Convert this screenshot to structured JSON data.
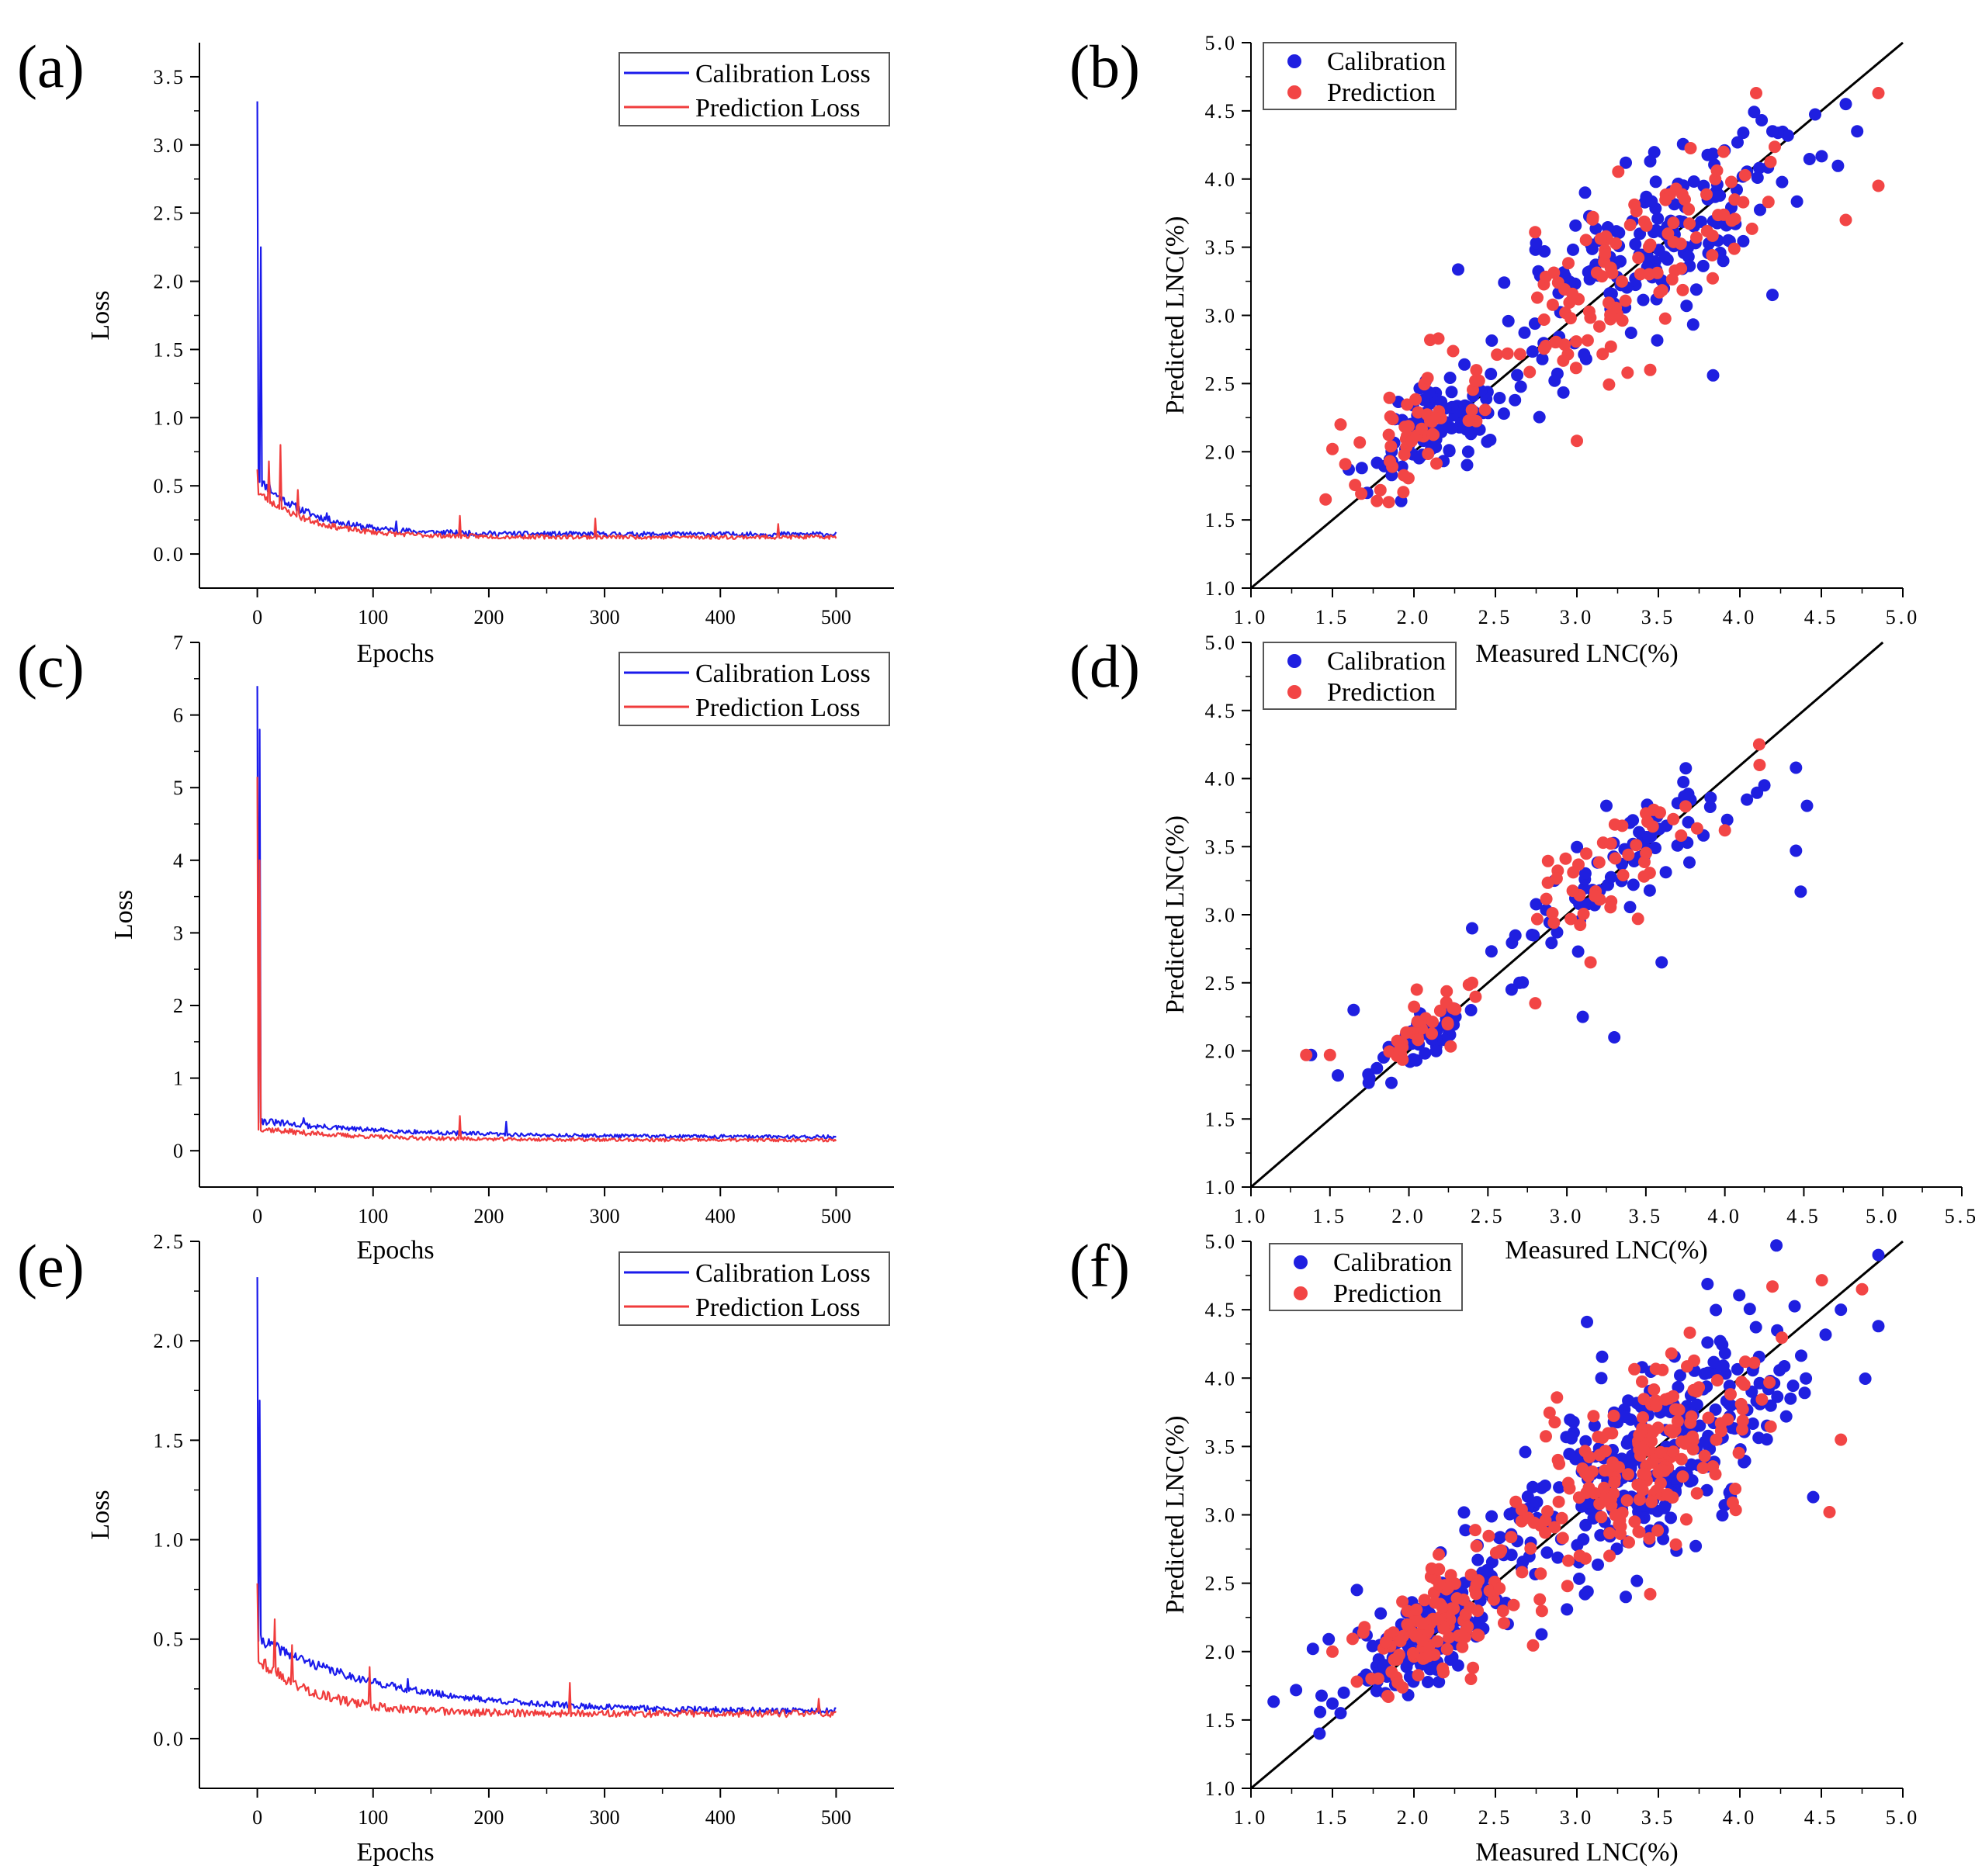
{
  "figure": {
    "loss_color_calibration": "#1a1aeb",
    "loss_color_prediction": "#f03c3c",
    "scatter_color_calibration": "#1f1fe0",
    "scatter_color_prediction": "#f24545",
    "line_color": "#000000"
  },
  "chart_data": [
    {
      "id": "a",
      "type": "line",
      "panel_label": "(a)",
      "xlabel": "Epochs",
      "ylabel": "Loss",
      "xlim": [
        -50,
        550
      ],
      "ylim": [
        -0.25,
        3.75
      ],
      "xticks": [
        0,
        100,
        200,
        300,
        400,
        500
      ],
      "xtick_labels": [
        "0",
        "100",
        "200",
        "300",
        "400",
        "500"
      ],
      "yticks": [
        0,
        0.5,
        1,
        1.5,
        2,
        2.5,
        3,
        3.5
      ],
      "ytick_labels": [
        "0.0",
        "0.5",
        "1.0",
        "1.5",
        "2.0",
        "2.5",
        "3.0",
        "3.5"
      ],
      "legend": [
        "Calibration Loss",
        "Prediction Loss"
      ],
      "series": [
        {
          "name": "Calibration Loss",
          "color_key": "loss_color_calibration",
          "curve": {
            "start": 3.32,
            "drop_to": 0.55,
            "plateau": 0.14,
            "decay": 45,
            "noise": 0.035,
            "seed": 11
          },
          "spikes": [
            [
              3,
              2.25
            ],
            [
              10,
              0.55
            ],
            [
              60,
              0.3
            ],
            [
              120,
              0.24
            ]
          ]
        },
        {
          "name": "Prediction Loss",
          "color_key": "loss_color_prediction",
          "curve": {
            "start": 0.62,
            "drop_to": 0.45,
            "plateau": 0.12,
            "decay": 45,
            "noise": 0.03,
            "seed": 23
          },
          "spikes": [
            [
              10,
              0.68
            ],
            [
              20,
              0.8
            ],
            [
              35,
              0.47
            ],
            [
              175,
              0.28
            ],
            [
              292,
              0.26
            ],
            [
              450,
              0.22
            ]
          ]
        }
      ]
    },
    {
      "id": "c",
      "type": "line",
      "panel_label": "(c)",
      "xlabel": "Epochs",
      "ylabel": "Loss",
      "xlim": [
        -50,
        550
      ],
      "ylim": [
        -0.5,
        7
      ],
      "xticks": [
        0,
        100,
        200,
        300,
        400,
        500
      ],
      "xtick_labels": [
        "0",
        "100",
        "200",
        "300",
        "400",
        "500"
      ],
      "yticks": [
        0,
        1,
        2,
        3,
        4,
        5,
        6,
        7
      ],
      "ytick_labels": [
        "0",
        "1",
        "2",
        "3",
        "4",
        "5",
        "6",
        "7"
      ],
      "legend": [
        "Calibration Loss",
        "Prediction Loss"
      ],
      "series": [
        {
          "name": "Calibration Loss",
          "color_key": "loss_color_calibration",
          "curve": {
            "start": 6.4,
            "drop_to": 0.4,
            "plateau": 0.18,
            "decay": 120,
            "noise": 0.05,
            "seed": 31
          },
          "spikes": [
            [
              2,
              5.8
            ],
            [
              40,
              0.45
            ],
            [
              215,
              0.4
            ]
          ]
        },
        {
          "name": "Prediction Loss",
          "color_key": "loss_color_prediction",
          "curve": {
            "start": 5.15,
            "drop_to": 0.3,
            "plateau": 0.14,
            "decay": 80,
            "noise": 0.045,
            "seed": 37
          },
          "spikes": [
            [
              2,
              4.0
            ],
            [
              175,
              0.48
            ]
          ]
        }
      ]
    },
    {
      "id": "e",
      "type": "line",
      "panel_label": "(e)",
      "xlabel": "Epochs",
      "ylabel": "Loss",
      "xlim": [
        -50,
        550
      ],
      "ylim": [
        -0.25,
        2.5
      ],
      "xticks": [
        0,
        100,
        200,
        300,
        400,
        500
      ],
      "xtick_labels": [
        "0",
        "100",
        "200",
        "300",
        "400",
        "500"
      ],
      "yticks": [
        0,
        0.5,
        1,
        1.5,
        2,
        2.5
      ],
      "ytick_labels": [
        "0.0",
        "0.5",
        "1.0",
        "1.5",
        "2.0",
        "2.5"
      ],
      "legend": [
        "Calibration Loss",
        "Prediction Loss"
      ],
      "series": [
        {
          "name": "Calibration Loss",
          "color_key": "loss_color_calibration",
          "curve": {
            "start": 2.32,
            "drop_to": 0.5,
            "plateau": 0.13,
            "decay": 110,
            "noise": 0.03,
            "seed": 41
          },
          "spikes": [
            [
              2,
              1.7
            ],
            [
              130,
              0.3
            ]
          ]
        },
        {
          "name": "Prediction Loss",
          "color_key": "loss_color_prediction",
          "curve": {
            "start": 0.78,
            "drop_to": 0.4,
            "plateau": 0.12,
            "decay": 50,
            "noise": 0.035,
            "seed": 43
          },
          "spikes": [
            [
              15,
              0.6
            ],
            [
              30,
              0.47
            ],
            [
              97,
              0.36
            ],
            [
              270,
              0.28
            ],
            [
              485,
              0.2
            ]
          ]
        }
      ]
    },
    {
      "id": "b",
      "type": "scatter",
      "panel_label": "(b)",
      "xlabel": "Measured LNC(%)",
      "ylabel": "Predicted LNC(%)",
      "xlim": [
        1.0,
        5.0
      ],
      "ylim": [
        1.0,
        5.0
      ],
      "xticks": [
        1.0,
        1.5,
        2.0,
        2.5,
        3.0,
        3.5,
        4.0,
        4.5,
        5.0
      ],
      "xtick_labels": [
        "1.0",
        "1.5",
        "2.0",
        "2.5",
        "3.0",
        "3.5",
        "4.0",
        "4.5",
        "5.0"
      ],
      "yticks": [
        1.0,
        1.5,
        2.0,
        2.5,
        3.0,
        3.5,
        4.0,
        4.5,
        5.0
      ],
      "ytick_labels": [
        "1.0",
        "1.5",
        "2.0",
        "2.5",
        "3.0",
        "3.5",
        "4.0",
        "4.5",
        "5.0"
      ],
      "legend": [
        "Calibration",
        "Prediction"
      ],
      "reference_line": [
        [
          1.0,
          1.0
        ],
        [
          5.0,
          5.0
        ]
      ],
      "series": [
        {
          "name": "Calibration",
          "color_key": "scatter_color_calibration",
          "clusters": [
            {
              "n": 90,
              "cx": 2.15,
              "cy": 2.2,
              "sx": 0.2,
              "sy": 0.18,
              "seed": 101
            },
            {
              "n": 170,
              "cx": 3.45,
              "cy": 3.45,
              "sx": 0.42,
              "sy": 0.32,
              "seed": 102
            }
          ],
          "points": [
            [
              1.6,
              1.87
            ],
            [
              1.68,
              1.88
            ],
            [
              4.65,
              4.55
            ],
            [
              4.72,
              4.35
            ],
            [
              4.2,
              4.35
            ],
            [
              3.3,
              4.12
            ],
            [
              3.45,
              4.13
            ],
            [
              3.05,
              3.9
            ],
            [
              4.2,
              3.15
            ],
            [
              2.75,
              3.53
            ]
          ]
        },
        {
          "name": "Prediction",
          "color_key": "scatter_color_prediction",
          "clusters": [
            {
              "n": 55,
              "cx": 2.05,
              "cy": 2.2,
              "sx": 0.22,
              "sy": 0.2,
              "seed": 103
            },
            {
              "n": 110,
              "cx": 3.35,
              "cy": 3.4,
              "sx": 0.4,
              "sy": 0.3,
              "seed": 104
            }
          ],
          "points": [
            [
              1.5,
              2.02
            ],
            [
              1.55,
              2.2
            ],
            [
              2.15,
              2.83
            ],
            [
              2.1,
              2.82
            ],
            [
              3.0,
              2.08
            ],
            [
              3.45,
              2.6
            ],
            [
              4.1,
              4.63
            ],
            [
              4.85,
              4.63
            ],
            [
              4.85,
              3.95
            ],
            [
              4.65,
              3.7
            ],
            [
              3.9,
              4.2
            ]
          ]
        }
      ]
    },
    {
      "id": "d",
      "type": "scatter",
      "panel_label": "(d)",
      "xlabel": "Measured LNC(%)",
      "ylabel": "Predicted LNC(%)",
      "xlim": [
        1.0,
        5.5
      ],
      "ylim": [
        1.0,
        5.0
      ],
      "xticks": [
        1.0,
        1.5,
        2.0,
        2.5,
        3.0,
        3.5,
        4.0,
        4.5,
        5.0,
        5.5
      ],
      "xtick_labels": [
        "1.0",
        "1.5",
        "2.0",
        "2.5",
        "3.0",
        "3.5",
        "4.0",
        "4.5",
        "5.0",
        "5.5"
      ],
      "yticks": [
        1.0,
        1.5,
        2.0,
        2.5,
        3.0,
        3.5,
        4.0,
        4.5,
        5.0
      ],
      "ytick_labels": [
        "1.0",
        "1.5",
        "2.0",
        "2.5",
        "3.0",
        "3.5",
        "4.0",
        "4.5",
        "5.0"
      ],
      "legend": [
        "Calibration",
        "Prediction"
      ],
      "reference_line": [
        [
          1.0,
          1.0
        ],
        [
          5.0,
          5.0
        ]
      ],
      "series": [
        {
          "name": "Calibration",
          "color_key": "scatter_color_calibration",
          "clusters": [
            {
              "n": 45,
              "cx": 2.1,
              "cy": 2.1,
              "sx": 0.15,
              "sy": 0.1,
              "seed": 201
            },
            {
              "n": 70,
              "cx": 3.35,
              "cy": 3.35,
              "sx": 0.35,
              "sy": 0.18,
              "seed": 202
            }
          ],
          "points": [
            [
              1.38,
              1.97
            ],
            [
              1.55,
              1.82
            ],
            [
              1.65,
              2.3
            ],
            [
              1.75,
              1.8
            ],
            [
              2.4,
              2.9
            ],
            [
              2.65,
              2.45
            ],
            [
              2.7,
              2.5
            ],
            [
              3.1,
              2.25
            ],
            [
              3.3,
              2.1
            ],
            [
              3.6,
              2.65
            ],
            [
              4.45,
              4.08
            ],
            [
              4.52,
              3.8
            ],
            [
              4.48,
              3.17
            ],
            [
              4.45,
              3.47
            ],
            [
              4.25,
              3.95
            ],
            [
              3.25,
              3.8
            ]
          ]
        },
        {
          "name": "Prediction",
          "color_key": "scatter_color_prediction",
          "clusters": [
            {
              "n": 30,
              "cx": 2.05,
              "cy": 2.1,
              "sx": 0.17,
              "sy": 0.1,
              "seed": 203
            },
            {
              "n": 45,
              "cx": 3.2,
              "cy": 3.3,
              "sx": 0.35,
              "sy": 0.15,
              "seed": 204
            }
          ],
          "points": [
            [
              1.35,
              1.97
            ],
            [
              1.5,
              1.97
            ],
            [
              2.05,
              2.45
            ],
            [
              2.4,
              2.5
            ],
            [
              2.8,
              2.35
            ],
            [
              3.15,
              2.65
            ],
            [
              3.45,
              2.97
            ],
            [
              4.22,
              4.1
            ],
            [
              4.0,
              3.62
            ],
            [
              3.55,
              3.77
            ]
          ]
        }
      ]
    },
    {
      "id": "f",
      "type": "scatter",
      "panel_label": "(f)",
      "xlabel": "Measured LNC(%)",
      "ylabel": "Predicted LNC(%)",
      "xlim": [
        1.0,
        5.0
      ],
      "ylim": [
        1.0,
        5.0
      ],
      "xticks": [
        1.0,
        1.5,
        2.0,
        2.5,
        3.0,
        3.5,
        4.0,
        4.5,
        5.0
      ],
      "xtick_labels": [
        "1.0",
        "1.5",
        "2.0",
        "2.5",
        "3.0",
        "3.5",
        "4.0",
        "4.5",
        "5.0"
      ],
      "yticks": [
        1.0,
        1.5,
        2.0,
        2.5,
        3.0,
        3.5,
        4.0,
        4.5,
        5.0
      ],
      "ytick_labels": [
        "1.0",
        "1.5",
        "2.0",
        "2.5",
        "3.0",
        "3.5",
        "4.0",
        "4.5",
        "5.0"
      ],
      "legend": [
        "Calibration",
        "Prediction"
      ],
      "reference_line": [
        [
          1.0,
          1.0
        ],
        [
          5.0,
          5.0
        ]
      ],
      "series": [
        {
          "name": "Calibration",
          "color_key": "scatter_color_calibration",
          "clusters": [
            {
              "n": 150,
              "cx": 2.1,
              "cy": 2.15,
              "sx": 0.25,
              "sy": 0.2,
              "seed": 301
            },
            {
              "n": 280,
              "cx": 3.5,
              "cy": 3.45,
              "sx": 0.45,
              "sy": 0.35,
              "seed": 302
            }
          ],
          "points": [
            [
              1.38,
              2.02
            ],
            [
              1.5,
              1.62
            ],
            [
              1.55,
              1.55
            ],
            [
              1.65,
              2.45
            ],
            [
              4.85,
              4.9
            ],
            [
              4.85,
              4.38
            ],
            [
              4.62,
              4.5
            ],
            [
              4.45,
              3.13
            ],
            [
              3.15,
              4.0
            ],
            [
              3.4,
              4.08
            ],
            [
              3.3,
              2.4
            ],
            [
              3.05,
              2.42
            ]
          ]
        },
        {
          "name": "Prediction",
          "color_key": "scatter_color_prediction",
          "clusters": [
            {
              "n": 110,
              "cx": 2.1,
              "cy": 2.2,
              "sx": 0.22,
              "sy": 0.18,
              "seed": 303
            },
            {
              "n": 200,
              "cx": 3.35,
              "cy": 3.35,
              "sx": 0.4,
              "sy": 0.3,
              "seed": 304
            }
          ],
          "points": [
            [
              1.5,
              2.0
            ],
            [
              1.65,
              1.78
            ],
            [
              2.35,
              1.8
            ],
            [
              3.45,
              2.42
            ],
            [
              4.55,
              3.02
            ],
            [
              4.62,
              3.55
            ],
            [
              4.75,
              4.65
            ],
            [
              4.2,
              4.67
            ],
            [
              3.2,
              2.7
            ]
          ]
        }
      ]
    }
  ]
}
